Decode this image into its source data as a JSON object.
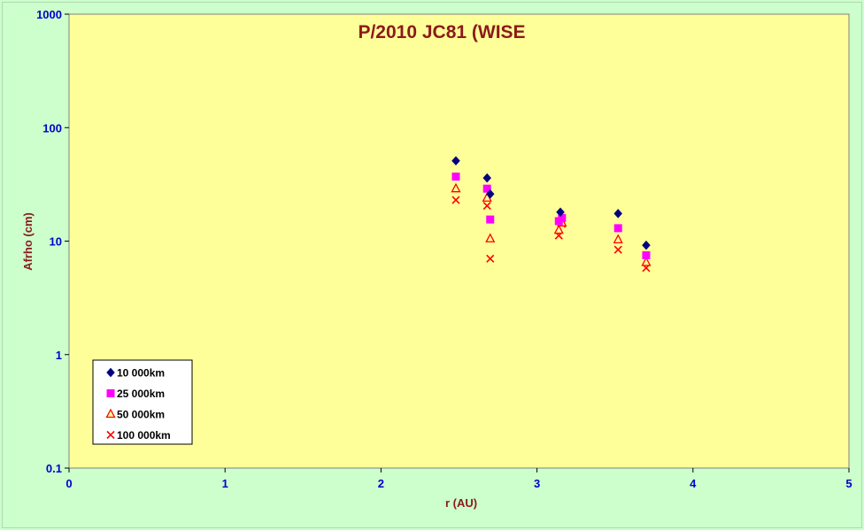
{
  "chart_data": {
    "type": "scatter",
    "title": "P/2010 JC81 (WISE",
    "xlabel": "r (AU)",
    "ylabel": "Afrho (cm)",
    "xlim": [
      0,
      5
    ],
    "ylim": [
      0.1,
      1000
    ],
    "y_scale": "log",
    "x_ticks": [
      "0",
      "1",
      "2",
      "3",
      "4",
      "5"
    ],
    "y_ticks": [
      "0.1",
      "1",
      "10",
      "100",
      "1000"
    ],
    "grid": false,
    "legend_position": "bottom-left",
    "plot_background": "#ffff99",
    "series": [
      {
        "name": "10 000km",
        "marker": "diamond",
        "color": "#000080",
        "x": [
          2.48,
          2.68,
          2.7,
          3.15,
          3.52,
          3.7
        ],
        "y": [
          51,
          36,
          26,
          18,
          17.5,
          9.2
        ]
      },
      {
        "name": "25 000km",
        "marker": "square",
        "color": "#ff00ff",
        "x": [
          2.48,
          2.68,
          2.7,
          3.14,
          3.16,
          3.52,
          3.7
        ],
        "y": [
          37,
          29,
          15.5,
          15,
          16,
          13,
          7.5
        ]
      },
      {
        "name": "50 000km",
        "marker": "triangle",
        "color": "#ff0000",
        "x": [
          2.48,
          2.68,
          2.7,
          3.14,
          3.16,
          3.52,
          3.7
        ],
        "y": [
          29,
          24,
          10.5,
          12.5,
          14.5,
          10.3,
          6.5
        ]
      },
      {
        "name": "100 000km",
        "marker": "x",
        "color": "#ff0000",
        "x": [
          2.48,
          2.68,
          2.7,
          3.14,
          3.16,
          3.52,
          3.7
        ],
        "y": [
          23,
          20.5,
          7,
          11.2,
          14.2,
          8.4,
          5.8
        ]
      }
    ]
  }
}
